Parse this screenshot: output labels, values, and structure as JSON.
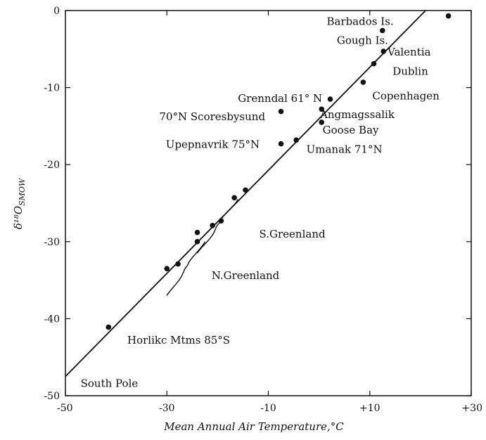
{
  "chart_data": {
    "type": "scatter",
    "xlabel": "Mean Annual Air Temperature,°C",
    "ylabel": "δ¹⁸O",
    "ylabel_sub": "SMOW",
    "xlim": [
      -50,
      30
    ],
    "ylim": [
      -50,
      0
    ],
    "x_ticks": [
      {
        "value": -50,
        "label": "-50"
      },
      {
        "value": -30,
        "label": "-30"
      },
      {
        "value": -10,
        "label": "-10"
      },
      {
        "value": 10,
        "label": "+10"
      },
      {
        "value": 30,
        "label": "+30"
      }
    ],
    "y_ticks": [
      {
        "value": 0,
        "label": "0"
      },
      {
        "value": -10,
        "label": "-10"
      },
      {
        "value": -20,
        "label": "-20"
      },
      {
        "value": -30,
        "label": "-30"
      },
      {
        "value": -40,
        "label": "-40"
      },
      {
        "value": -50,
        "label": "-50"
      }
    ],
    "regression_line": {
      "x1": -50,
      "y1": -47.5,
      "x2": 21,
      "y2": 0
    },
    "points": [
      {
        "x": 25.5,
        "y": -0.7
      },
      {
        "x": 12.5,
        "y": -2.6
      },
      {
        "x": 12.7,
        "y": -5.3
      },
      {
        "x": 10.8,
        "y": -6.9
      },
      {
        "x": 8.7,
        "y": -9.3
      },
      {
        "x": 2.2,
        "y": -11.5
      },
      {
        "x": 0.5,
        "y": -12.8
      },
      {
        "x": 0.5,
        "y": -14.5
      },
      {
        "x": -7.5,
        "y": -13.1
      },
      {
        "x": -7.5,
        "y": -17.3
      },
      {
        "x": -4.5,
        "y": -16.8
      },
      {
        "x": -14.5,
        "y": -23.3
      },
      {
        "x": -16.7,
        "y": -24.3
      },
      {
        "x": -19.3,
        "y": -27.3
      },
      {
        "x": -21,
        "y": -27.9
      },
      {
        "x": -24,
        "y": -28.8
      },
      {
        "x": -24,
        "y": -30
      },
      {
        "x": -27.8,
        "y": -32.9
      },
      {
        "x": -30,
        "y": -33.5
      },
      {
        "x": -41.5,
        "y": -41.1
      }
    ],
    "annotations": [
      {
        "text": "Barbados Is.",
        "x": 1.5,
        "y": -1.4
      },
      {
        "text": "Gough Is.",
        "x": 3.5,
        "y": -3.9
      },
      {
        "text": "Valentia",
        "x": 13.5,
        "y": -5.4
      },
      {
        "text": "Dublin",
        "x": 14.5,
        "y": -7.9
      },
      {
        "text": "Copenhagen",
        "x": 10.5,
        "y": -11.1
      },
      {
        "text": "Grenndal 61° N",
        "x": -16,
        "y": -11.4
      },
      {
        "text": "Angmagssalik",
        "x": 0.2,
        "y": -13.5
      },
      {
        "text": "70°N Scoresbysund",
        "x": -31.5,
        "y": -13.8
      },
      {
        "text": "Goose Bay",
        "x": 0.7,
        "y": -15.5
      },
      {
        "text": "Upepnavrik 75°N",
        "x": -30.2,
        "y": -17.4
      },
      {
        "text": "Umanak 71°N",
        "x": -2.5,
        "y": -18.0
      },
      {
        "text": "S.Greenland",
        "x": -11.8,
        "y": -29.0
      },
      {
        "text": "N.Greenland",
        "x": -21.2,
        "y": -34.4
      },
      {
        "text": "Horlikc Mtms 85°S",
        "x": -37.8,
        "y": -42.8
      },
      {
        "text": "South Pole",
        "x": -47,
        "y": -48.4
      }
    ],
    "brackets": [
      {
        "x0": -16,
        "x1": -24,
        "y0": -24.5,
        "y1": -31.5
      },
      {
        "x0": -22.5,
        "x1": -30,
        "y0": -30.0,
        "y1": -37.0
      }
    ]
  }
}
